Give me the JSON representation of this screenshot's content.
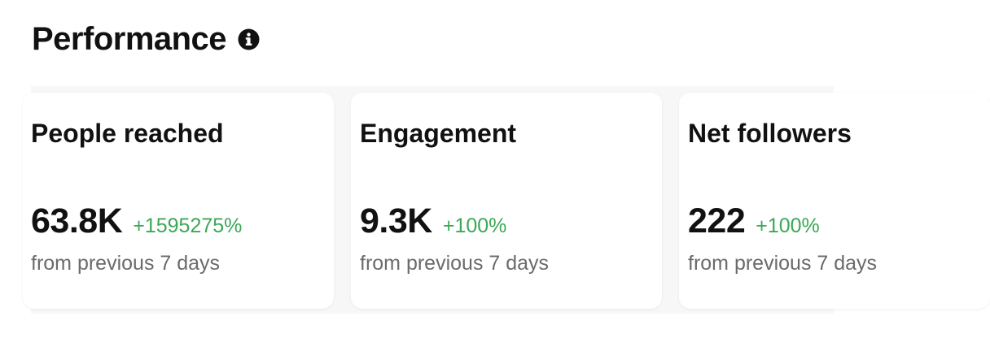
{
  "header": {
    "title": "Performance",
    "info_icon": "info-icon"
  },
  "cards": [
    {
      "title": "People reached",
      "value": "63.8K",
      "change": "+1595275%",
      "subtitle": "from previous 7 days"
    },
    {
      "title": "Engagement",
      "value": "9.3K",
      "change": "+100%",
      "subtitle": "from previous 7 days"
    },
    {
      "title": "Net followers",
      "value": "222",
      "change": "+100%",
      "subtitle": "from previous 7 days"
    }
  ],
  "colors": {
    "positive_change": "#3aa856",
    "secondary_text": "#6b6b6b",
    "strip_background": "#f7f7f8"
  }
}
